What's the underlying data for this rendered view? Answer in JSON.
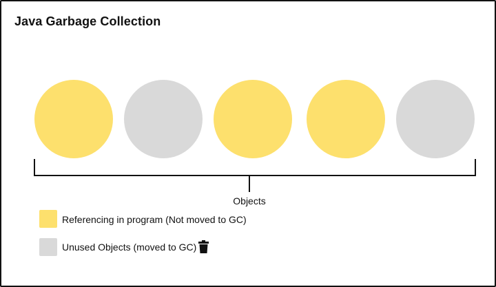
{
  "title": "Java Garbage Collection",
  "objects": [
    {
      "status": "referenced"
    },
    {
      "status": "unused"
    },
    {
      "status": "referenced"
    },
    {
      "status": "referenced"
    },
    {
      "status": "unused"
    }
  ],
  "bracket_label": "Objects",
  "legend": [
    {
      "label": "Referencing in program (Not moved to GC)",
      "color": "#fde06d"
    },
    {
      "label": "Unused Objects (moved to GC)",
      "color": "#d9d9d9",
      "icon": "trash-icon"
    }
  ],
  "colors": {
    "referenced": "#fde06d",
    "unused": "#d9d9d9",
    "ink": "#111111"
  }
}
